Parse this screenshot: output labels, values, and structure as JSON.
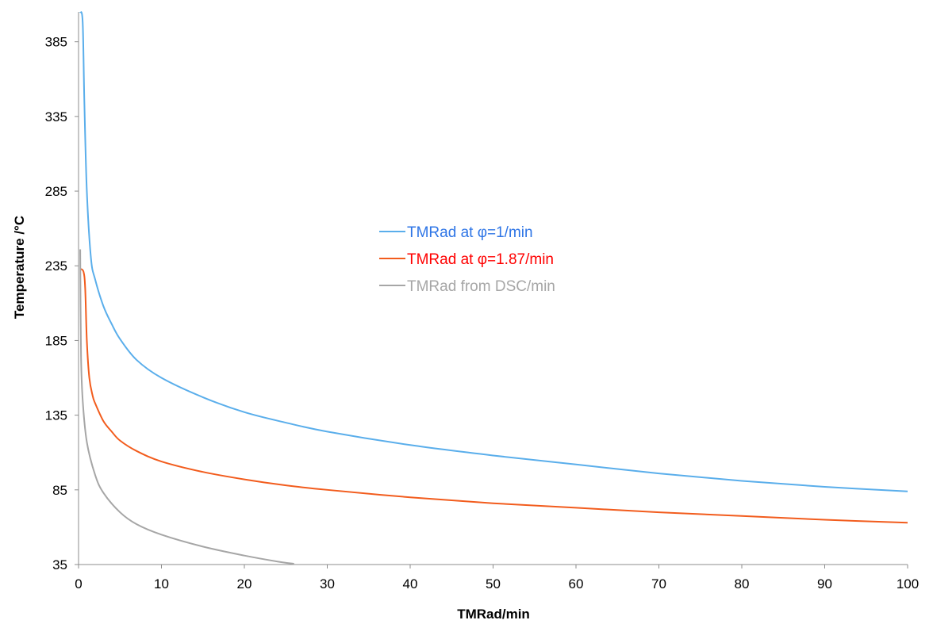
{
  "chart_data": {
    "type": "line",
    "title": "",
    "xlabel": "TMRad/min",
    "ylabel": "Temperature /°C",
    "xlim": [
      0,
      100
    ],
    "ylim": [
      35,
      405
    ],
    "x_ticks": [
      "0",
      "10",
      "20",
      "30",
      "40",
      "50",
      "60",
      "70",
      "80",
      "90",
      "100"
    ],
    "y_ticks": [
      "35",
      "85",
      "135",
      "185",
      "235",
      "285",
      "335",
      "385"
    ],
    "grid": false,
    "legend_position": "center",
    "series": [
      {
        "name": "TMRad at φ=1/min",
        "color": "#5aaeeb",
        "label_color": "#2e75e6",
        "points": [
          [
            0.2,
            405
          ],
          [
            0.5,
            398
          ],
          [
            0.7,
            345
          ],
          [
            1,
            285
          ],
          [
            1.5,
            240
          ],
          [
            2,
            226
          ],
          [
            3,
            208
          ],
          [
            4,
            196
          ],
          [
            5,
            186
          ],
          [
            7,
            172
          ],
          [
            10,
            160
          ],
          [
            15,
            147
          ],
          [
            20,
            137
          ],
          [
            25,
            130
          ],
          [
            30,
            124
          ],
          [
            40,
            115
          ],
          [
            50,
            108
          ],
          [
            60,
            102
          ],
          [
            70,
            96
          ],
          [
            80,
            91
          ],
          [
            90,
            87
          ],
          [
            100,
            84
          ]
        ]
      },
      {
        "name": "TMRad at φ=1.87/min",
        "color": "#f25c1d",
        "label_color": "#ff0000",
        "points": [
          [
            0.2,
            233
          ],
          [
            0.6,
            231
          ],
          [
            0.8,
            220
          ],
          [
            1,
            185
          ],
          [
            1.3,
            160
          ],
          [
            1.7,
            148
          ],
          [
            2,
            143
          ],
          [
            3,
            131
          ],
          [
            4,
            124
          ],
          [
            5,
            118
          ],
          [
            7,
            111
          ],
          [
            10,
            104
          ],
          [
            15,
            97
          ],
          [
            20,
            92
          ],
          [
            25,
            88
          ],
          [
            30,
            85
          ],
          [
            40,
            80
          ],
          [
            50,
            76
          ],
          [
            60,
            73
          ],
          [
            70,
            70
          ],
          [
            80,
            67.5
          ],
          [
            90,
            65
          ],
          [
            100,
            63
          ]
        ]
      },
      {
        "name": "TMRad from DSC/min",
        "color": "#a6a6a6",
        "label_color": "#a6a6a6",
        "points": [
          [
            0.2,
            246
          ],
          [
            0.3,
            175
          ],
          [
            0.5,
            145
          ],
          [
            1,
            117
          ],
          [
            2,
            95
          ],
          [
            3,
            83
          ],
          [
            5,
            70
          ],
          [
            7,
            62
          ],
          [
            10,
            55
          ],
          [
            15,
            47
          ],
          [
            20,
            41
          ],
          [
            24,
            37
          ],
          [
            26,
            35.5
          ]
        ]
      }
    ]
  }
}
